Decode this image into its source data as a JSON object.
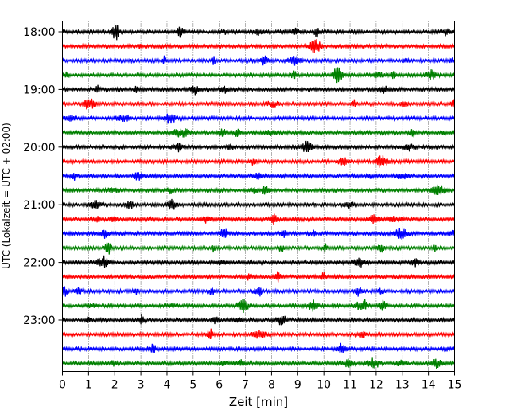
{
  "chart_data": {
    "type": "line",
    "xlabel": "Zeit  [min]",
    "ylabel": "UTC (Lokalzeit = UTC + 02:00)",
    "xlim": [
      0,
      15
    ],
    "x_ticks": [
      0,
      1,
      2,
      3,
      4,
      5,
      6,
      7,
      8,
      9,
      10,
      11,
      12,
      13,
      14,
      15
    ],
    "x_tick_labels": [
      "0",
      "1",
      "2",
      "3",
      "4",
      "5",
      "6",
      "7",
      "8",
      "9",
      "10",
      "11",
      "12",
      "13",
      "14",
      "15"
    ],
    "y_tick_labels": [
      "18:00",
      "19:00",
      "20:00",
      "21:00",
      "22:00",
      "23:00"
    ],
    "y_tick_rows": [
      0,
      4,
      8,
      12,
      16,
      20
    ],
    "row_count": 24,
    "grid": "vertical dotted at each minute",
    "color_cycle": [
      "#000000",
      "#ff0000",
      "#0000ff",
      "#008000"
    ],
    "traces_per_hour": 4,
    "minutes_per_trace": 15
  }
}
